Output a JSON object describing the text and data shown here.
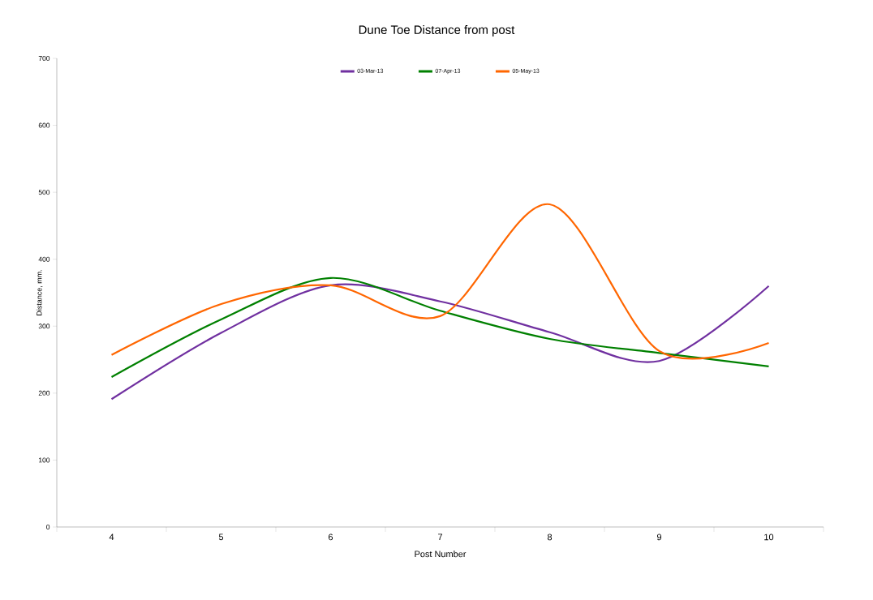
{
  "chart_data": {
    "type": "line",
    "title": "Dune Toe Distance from post",
    "xlabel": "Post Number",
    "ylabel": "Distance, mm.",
    "categories": [
      "4",
      "5",
      "6",
      "7",
      "8",
      "9",
      "10"
    ],
    "series": [
      {
        "name": "03-Mar-13",
        "color": "#7030a0",
        "values": [
          191,
          290,
          361,
          337,
          291,
          248,
          360
        ]
      },
      {
        "name": "07-Apr-13",
        "color": "#008000",
        "values": [
          224,
          310,
          372,
          323,
          281,
          260,
          240
        ]
      },
      {
        "name": "05-May-13",
        "color": "#ff6600",
        "values": [
          257,
          333,
          361,
          315,
          482,
          263,
          275
        ]
      }
    ],
    "ylim": [
      0,
      700
    ],
    "yticks": [
      0,
      100,
      200,
      300,
      400,
      500,
      600,
      700
    ],
    "grid": false,
    "legend": "top",
    "marker": "none",
    "line_style": "solid"
  }
}
